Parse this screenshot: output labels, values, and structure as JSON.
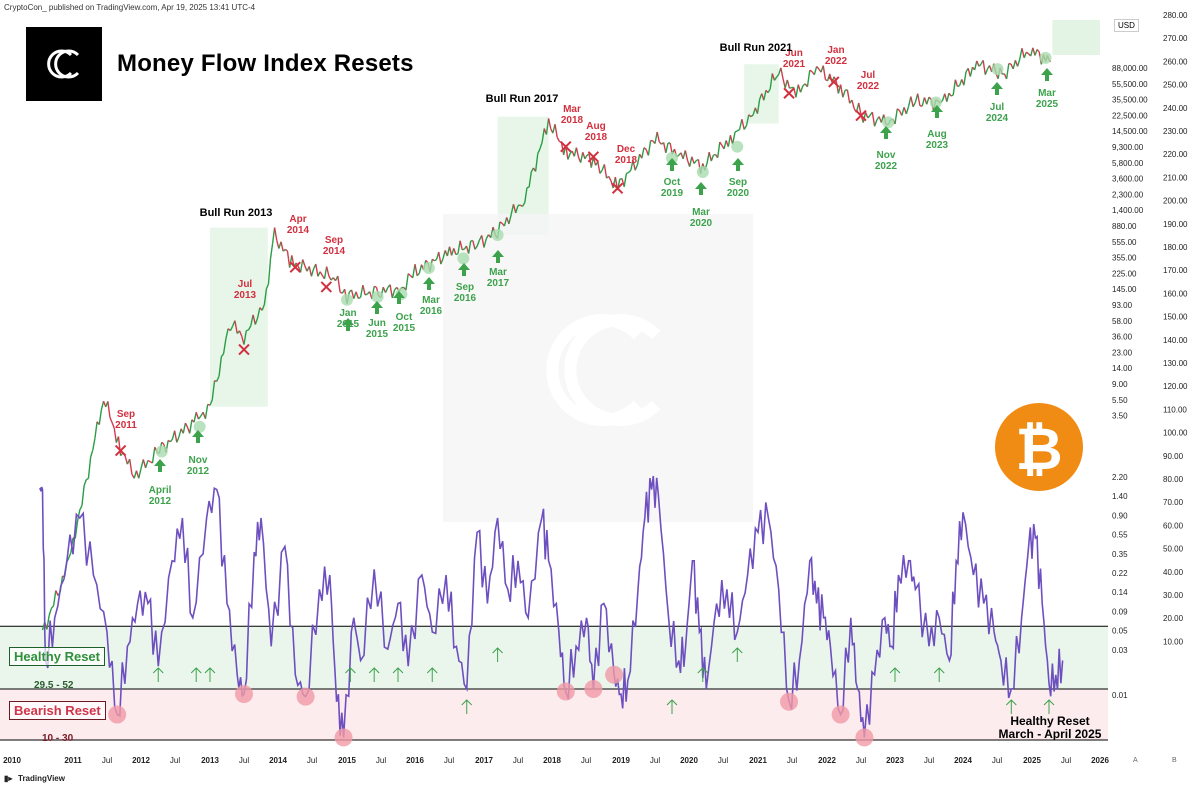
{
  "header": {
    "published": "CryptoCon_ published on TradingView.com, Apr 19, 2025 13:41 UTC-4",
    "title": "Money Flow Index Resets",
    "currency": "USD",
    "brand": "TradingView"
  },
  "legend": {
    "healthy_label": "Healthy Reset",
    "healthy_range": "29.5 - 52",
    "bearish_label": "Bearish Reset",
    "bearish_range": "10 - 30",
    "note_line1": "Healthy Reset",
    "note_line2": "March - April 2025"
  },
  "colors": {
    "healthy": "#2f9b3e",
    "bearish": "#d43a4e",
    "mfi": "#6e4fc0",
    "up_candle": "#2a9d46",
    "down_candle": "#d43a4e",
    "btc": "#f08c14"
  },
  "chart_data": [
    {
      "type": "line",
      "title": "Money Flow Index Resets",
      "subject": "Bitcoin price (USD, log scale)",
      "y_scale": "log",
      "left_axis_ticks": [
        "88,000.00",
        "55,500.00",
        "35,500.00",
        "22,500.00",
        "14,500.00",
        "9,300.00",
        "5,800.00",
        "3,600.00",
        "2,300.00",
        "1,400.00",
        "880.00",
        "555.00",
        "355.00",
        "225.00",
        "145.00",
        "93.00",
        "58.00",
        "36.00",
        "23.00",
        "14.00",
        "9.00",
        "5.50",
        "3.50",
        "2.20",
        "1.40",
        "0.90",
        "0.55",
        "0.35",
        "0.22",
        "0.14",
        "0.09",
        "0.05",
        "0.03",
        "0.01"
      ],
      "x_ticks": [
        "2010",
        "2011",
        "Jul",
        "2012",
        "Jul",
        "2013",
        "Jul",
        "2014",
        "Jul",
        "2015",
        "Jul",
        "2016",
        "Jul",
        "2017",
        "Jul",
        "2018",
        "Jul",
        "2019",
        "Jul",
        "2020",
        "Jul",
        "2021",
        "Jul",
        "2022",
        "Jul",
        "2023",
        "Jul",
        "2024",
        "Jul",
        "2025",
        "Jul",
        "2026"
      ],
      "series": [
        {
          "values": [
            [
              2010.5,
              0.05
            ],
            [
              2010.9,
              0.25
            ],
            [
              2011.1,
              1
            ],
            [
              2011.45,
              18
            ],
            [
              2011.7,
              5
            ],
            [
              2011.9,
              2.5
            ],
            [
              2012.3,
              5
            ],
            [
              2012.8,
              10
            ],
            [
              2013.0,
              14
            ],
            [
              2013.3,
              110
            ],
            [
              2013.5,
              80
            ],
            [
              2013.8,
              180
            ],
            [
              2013.95,
              1000
            ],
            [
              2014.2,
              500
            ],
            [
              2014.8,
              350
            ],
            [
              2015.0,
              220
            ],
            [
              2015.5,
              250
            ],
            [
              2015.8,
              260
            ],
            [
              2016.0,
              400
            ],
            [
              2016.5,
              650
            ],
            [
              2016.9,
              800
            ],
            [
              2017.2,
              1100
            ],
            [
              2017.6,
              2500
            ],
            [
              2017.95,
              17000
            ],
            [
              2018.2,
              8000
            ],
            [
              2018.6,
              6500
            ],
            [
              2018.95,
              3300
            ],
            [
              2019.5,
              11000
            ],
            [
              2019.85,
              7500
            ],
            [
              2020.2,
              5500
            ],
            [
              2020.6,
              11000
            ],
            [
              2020.9,
              19000
            ],
            [
              2021.3,
              58000
            ],
            [
              2021.55,
              32000
            ],
            [
              2021.85,
              64000
            ],
            [
              2022.2,
              40000
            ],
            [
              2022.5,
              20000
            ],
            [
              2022.9,
              16500
            ],
            [
              2023.3,
              28000
            ],
            [
              2023.7,
              27000
            ],
            [
              2024.2,
              70000
            ],
            [
              2024.6,
              55000
            ],
            [
              2024.95,
              100000
            ],
            [
              2025.2,
              82000
            ],
            [
              2025.3,
              85000
            ]
          ]
        }
      ],
      "annotations": {
        "bull_runs": [
          "Bull Run 2013",
          "Bull Run 2017",
          "Bull Run 2021"
        ],
        "bearish_resets": [
          "Sep 2011",
          "Jul 2013",
          "Apr 2014",
          "Sep 2014",
          "Mar 2018",
          "Aug 2018",
          "Dec 2018",
          "Jun 2021",
          "Jan 2022",
          "Jul 2022"
        ],
        "healthy_resets": [
          "April 2012",
          "Nov 2012",
          "Jan 2015",
          "Jun 2015",
          "Oct 2015",
          "Mar 2016",
          "Sep 2016",
          "Mar 2017",
          "Oct 2019",
          "Mar 2020",
          "Sep 2020",
          "Nov 2022",
          "Aug 2023",
          "Jul 2024",
          "Mar 2025"
        ]
      }
    },
    {
      "type": "line",
      "subject": "Money Flow Index",
      "right_axis_ticks": [
        "280.00",
        "270.00",
        "260.00",
        "250.00",
        "240.00",
        "230.00",
        "220.00",
        "210.00",
        "200.00",
        "190.00",
        "180.00",
        "170.00",
        "160.00",
        "150.00",
        "140.00",
        "130.00",
        "120.00",
        "110.00",
        "100.00",
        "90.00",
        "80.00",
        "70.00",
        "60.00",
        "50.00",
        "40.00",
        "30.00",
        "20.00",
        "10.00"
      ],
      "bands": {
        "healthy": [
          29.5,
          52
        ],
        "bearish": [
          10,
          30
        ]
      },
      "series": [
        {
          "values": [
            [
              2010.45,
              100
            ],
            [
              2010.5,
              100
            ],
            [
              2010.55,
              40
            ],
            [
              2010.7,
              55
            ],
            [
              2010.9,
              75
            ],
            [
              2011.1,
              90
            ],
            [
              2011.3,
              70
            ],
            [
              2011.5,
              50
            ],
            [
              2011.65,
              20
            ],
            [
              2011.8,
              45
            ],
            [
              2011.95,
              60
            ],
            [
              2012.1,
              60
            ],
            [
              2012.25,
              38
            ],
            [
              2012.45,
              75
            ],
            [
              2012.6,
              90
            ],
            [
              2012.75,
              55
            ],
            [
              2012.95,
              90
            ],
            [
              2013.1,
              100
            ],
            [
              2013.25,
              60
            ],
            [
              2013.4,
              35
            ],
            [
              2013.5,
              28
            ],
            [
              2013.65,
              78
            ],
            [
              2013.75,
              90
            ],
            [
              2013.9,
              45
            ],
            [
              2014.1,
              80
            ],
            [
              2014.25,
              35
            ],
            [
              2014.4,
              27
            ],
            [
              2014.6,
              65
            ],
            [
              2014.75,
              70
            ],
            [
              2014.85,
              25
            ],
            [
              2014.95,
              11
            ],
            [
              2015.1,
              55
            ],
            [
              2015.2,
              40
            ],
            [
              2015.4,
              72
            ],
            [
              2015.6,
              44
            ],
            [
              2015.75,
              60
            ],
            [
              2015.9,
              38
            ],
            [
              2016.1,
              70
            ],
            [
              2016.25,
              50
            ],
            [
              2016.45,
              70
            ],
            [
              2016.6,
              45
            ],
            [
              2016.75,
              30
            ],
            [
              2016.9,
              85
            ],
            [
              2017.05,
              60
            ],
            [
              2017.2,
              90
            ],
            [
              2017.35,
              65
            ],
            [
              2017.5,
              75
            ],
            [
              2017.65,
              55
            ],
            [
              2017.85,
              90
            ],
            [
              2017.95,
              75
            ],
            [
              2018.1,
              50
            ],
            [
              2018.2,
              29
            ],
            [
              2018.35,
              45
            ],
            [
              2018.5,
              55
            ],
            [
              2018.6,
              30
            ],
            [
              2018.75,
              60
            ],
            [
              2018.9,
              35
            ],
            [
              2019.0,
              28
            ],
            [
              2019.1,
              33
            ],
            [
              2019.25,
              65
            ],
            [
              2019.35,
              90
            ],
            [
              2019.45,
              100
            ],
            [
              2019.55,
              98
            ],
            [
              2019.7,
              55
            ],
            [
              2019.85,
              40
            ],
            [
              2019.95,
              45
            ],
            [
              2020.05,
              75
            ],
            [
              2020.15,
              50
            ],
            [
              2020.25,
              30
            ],
            [
              2020.4,
              60
            ],
            [
              2020.55,
              65
            ],
            [
              2020.7,
              50
            ],
            [
              2020.85,
              70
            ],
            [
              2021.0,
              85
            ],
            [
              2021.15,
              90
            ],
            [
              2021.3,
              65
            ],
            [
              2021.45,
              25
            ],
            [
              2021.6,
              40
            ],
            [
              2021.75,
              75
            ],
            [
              2021.85,
              60
            ],
            [
              2021.95,
              55
            ],
            [
              2022.05,
              45
            ],
            [
              2022.2,
              20
            ],
            [
              2022.35,
              55
            ],
            [
              2022.45,
              30
            ],
            [
              2022.55,
              11
            ],
            [
              2022.7,
              35
            ],
            [
              2022.85,
              55
            ],
            [
              2022.95,
              45
            ],
            [
              2023.05,
              70
            ],
            [
              2023.2,
              75
            ],
            [
              2023.3,
              65
            ],
            [
              2023.5,
              45
            ],
            [
              2023.65,
              55
            ],
            [
              2023.8,
              40
            ],
            [
              2023.9,
              75
            ],
            [
              2024.0,
              92
            ],
            [
              2024.15,
              70
            ],
            [
              2024.3,
              60
            ],
            [
              2024.45,
              50
            ],
            [
              2024.55,
              40
            ],
            [
              2024.7,
              30
            ],
            [
              2024.85,
              55
            ],
            [
              2024.95,
              80
            ],
            [
              2025.05,
              83
            ],
            [
              2025.15,
              60
            ],
            [
              2025.25,
              32
            ],
            [
              2025.35,
              35
            ],
            [
              2025.45,
              40
            ]
          ]
        }
      ]
    }
  ]
}
